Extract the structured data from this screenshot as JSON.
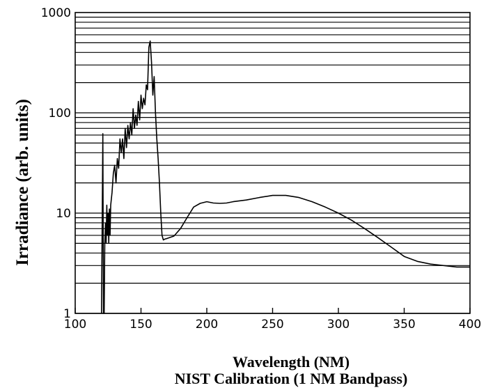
{
  "chart_data": {
    "type": "line",
    "title": "",
    "xlabel": "Wavelength (NM)",
    "subtitle": "NIST Calibration (1 NM Bandpass)",
    "ylabel": "Irradiance (arb. units)",
    "xlim": [
      100,
      400
    ],
    "ylim": [
      1,
      1000
    ],
    "yscale": "log",
    "grid": "horizontal",
    "x_ticks": [
      100,
      150,
      200,
      250,
      300,
      350,
      400
    ],
    "x_tick_labels": [
      "100",
      "150",
      "200",
      "250",
      "300",
      "350",
      "400"
    ],
    "y_ticks": [
      1,
      10,
      100,
      1000
    ],
    "y_tick_labels": [
      "1",
      "10",
      "100",
      "1000"
    ],
    "series": [
      {
        "x": [
          120,
          121,
          121.5,
          122,
          122.5,
          123,
          123.5,
          124,
          124.5,
          125,
          125.5,
          126,
          126.5,
          127,
          128,
          129,
          130,
          131,
          132,
          133,
          134,
          135,
          136,
          137,
          138,
          139,
          140,
          141,
          142,
          143,
          144,
          145,
          146,
          147,
          148,
          149,
          150,
          151,
          152,
          153,
          154,
          155,
          156,
          157,
          158,
          159,
          160,
          161,
          162,
          163,
          164,
          165,
          166,
          167,
          168,
          170,
          175,
          180,
          185,
          190,
          195,
          200,
          205,
          210,
          215,
          220,
          230,
          240,
          250,
          260,
          270,
          280,
          290,
          300,
          310,
          320,
          330,
          340,
          350,
          360,
          370,
          380,
          390,
          395,
          400
        ],
        "y": [
          1,
          62,
          1,
          1,
          5,
          8,
          5,
          12,
          6,
          10,
          5,
          11,
          6,
          12,
          16,
          25,
          30,
          20,
          35,
          28,
          55,
          40,
          55,
          35,
          70,
          45,
          75,
          55,
          80,
          60,
          110,
          70,
          95,
          75,
          130,
          85,
          150,
          110,
          140,
          120,
          190,
          170,
          450,
          520,
          320,
          150,
          230,
          100,
          55,
          35,
          20,
          10,
          6,
          5.4,
          5.5,
          5.6,
          5.9,
          7,
          9,
          11.5,
          12.5,
          13,
          12.6,
          12.5,
          12.6,
          13,
          13.5,
          14.3,
          15,
          15,
          14.3,
          13,
          11.5,
          10,
          8.5,
          7,
          5.7,
          4.6,
          3.7,
          3.3,
          3.1,
          3.0,
          2.9,
          2.9,
          2.9
        ]
      }
    ]
  }
}
